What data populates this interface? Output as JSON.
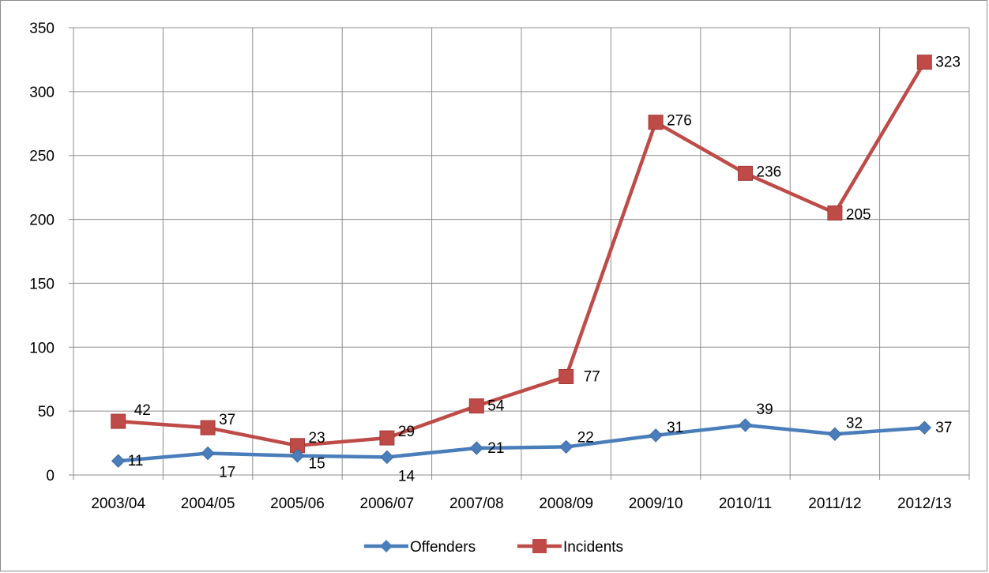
{
  "chart_data": {
    "type": "line",
    "title": "",
    "xlabel": "",
    "ylabel": "",
    "categories": [
      "2003/04",
      "2004/05",
      "2005/06",
      "2006/07",
      "2007/08",
      "2008/09",
      "2009/10",
      "2010/11",
      "2011/12",
      "2012/13"
    ],
    "ylim": [
      0,
      350
    ],
    "yticks": [
      0,
      50,
      100,
      150,
      200,
      250,
      300,
      350
    ],
    "grid": true,
    "legend": "bottom",
    "series": [
      {
        "name": "Offenders",
        "values": [
          11,
          17,
          15,
          14,
          21,
          22,
          31,
          39,
          32,
          37
        ],
        "color": "#4a7ebb",
        "marker": "diamond"
      },
      {
        "name": "Incidents",
        "values": [
          42,
          37,
          23,
          29,
          54,
          77,
          276,
          236,
          205,
          323
        ],
        "color": "#be4b48",
        "marker": "square"
      }
    ]
  }
}
